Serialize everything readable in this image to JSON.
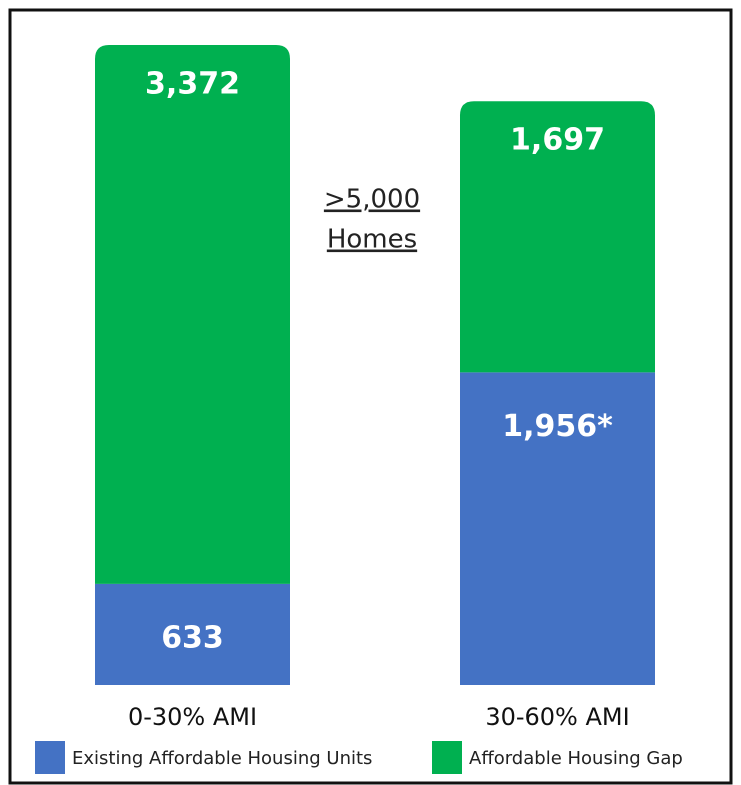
{
  "chart_data": {
    "type": "stacked_bar",
    "categories": [
      "0-30% AMI",
      "30-60% AMI"
    ],
    "series": [
      {
        "name": "Existing Affordable Housing Units",
        "color": "#4472c4",
        "values": [
          633,
          1956
        ],
        "value_labels": [
          "633",
          "1,956*"
        ]
      },
      {
        "name": "Affordable Housing Gap",
        "color": "#00b050",
        "values": [
          3372,
          1697
        ],
        "value_labels": [
          "3,372",
          "1,697"
        ]
      }
    ],
    "annotation": [
      ">5,000",
      "Homes"
    ]
  }
}
